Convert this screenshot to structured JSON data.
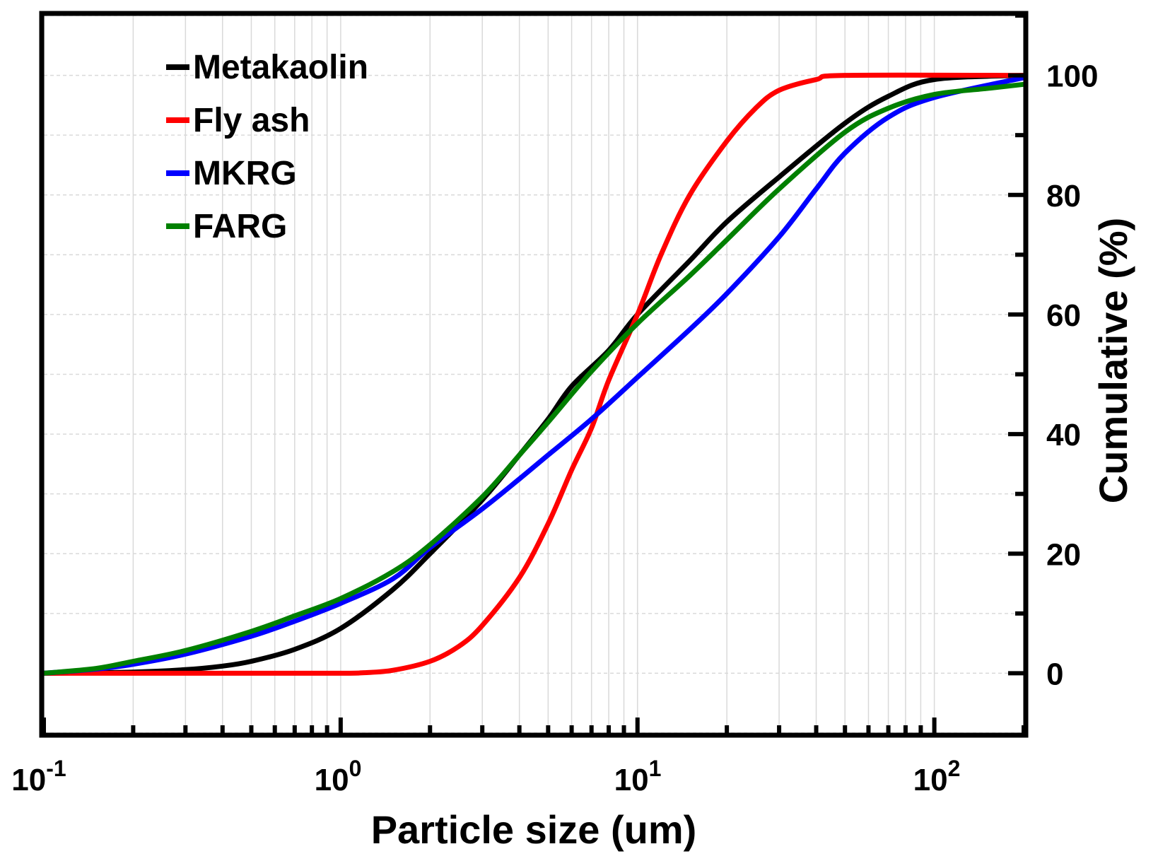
{
  "chart_data": {
    "type": "line",
    "title": "",
    "xlabel": "Particle size (um)",
    "ylabel": "Cumulative (%)",
    "xscale": "log",
    "xlim": [
      0.1,
      200
    ],
    "ylim": [
      -10,
      110
    ],
    "grid": true,
    "legend_position": "top-left",
    "x_tick_labels": [
      {
        "value": 0.1,
        "base": "10",
        "exp": "-1"
      },
      {
        "value": 1,
        "base": "10",
        "exp": "0"
      },
      {
        "value": 10,
        "base": "10",
        "exp": "1"
      },
      {
        "value": 100,
        "base": "10",
        "exp": "2"
      }
    ],
    "y_tick_labels": [
      "0",
      "20",
      "40",
      "60",
      "80",
      "100"
    ],
    "y_tick_values": [
      0,
      20,
      40,
      60,
      80,
      100
    ],
    "series": [
      {
        "name": "Metakaolin",
        "color": "#000000",
        "points": [
          [
            0.1,
            0
          ],
          [
            0.2,
            0.2
          ],
          [
            0.3,
            0.6
          ],
          [
            0.4,
            1.2
          ],
          [
            0.5,
            2
          ],
          [
            0.7,
            4
          ],
          [
            1,
            7.5
          ],
          [
            1.5,
            14
          ],
          [
            2,
            20
          ],
          [
            3,
            29
          ],
          [
            4,
            36.5
          ],
          [
            5,
            42.5
          ],
          [
            6,
            48
          ],
          [
            8,
            54
          ],
          [
            10,
            60
          ],
          [
            15,
            69
          ],
          [
            20,
            75.5
          ],
          [
            30,
            83
          ],
          [
            50,
            92
          ],
          [
            70,
            96.5
          ],
          [
            100,
            99.3
          ],
          [
            200,
            100
          ]
        ]
      },
      {
        "name": "Fly ash",
        "color": "#ff0000",
        "points": [
          [
            0.1,
            0
          ],
          [
            0.5,
            0
          ],
          [
            1,
            0
          ],
          [
            1.2,
            0.1
          ],
          [
            1.5,
            0.5
          ],
          [
            2,
            2
          ],
          [
            2.5,
            4.5
          ],
          [
            3,
            8
          ],
          [
            4,
            16
          ],
          [
            5,
            25
          ],
          [
            6,
            34
          ],
          [
            7,
            41
          ],
          [
            8,
            49
          ],
          [
            10,
            60
          ],
          [
            12,
            70
          ],
          [
            15,
            80
          ],
          [
            20,
            89
          ],
          [
            25,
            94.5
          ],
          [
            30,
            97.5
          ],
          [
            40,
            99.3
          ],
          [
            50,
            100
          ],
          [
            200,
            100
          ]
        ]
      },
      {
        "name": "MKRG",
        "color": "#0000ff",
        "points": [
          [
            0.1,
            0
          ],
          [
            0.15,
            0.7
          ],
          [
            0.2,
            1.5
          ],
          [
            0.3,
            3.2
          ],
          [
            0.5,
            6.2
          ],
          [
            0.7,
            8.7
          ],
          [
            1,
            11.7
          ],
          [
            1.5,
            15.8
          ],
          [
            2,
            21
          ],
          [
            3,
            27.5
          ],
          [
            4,
            32.5
          ],
          [
            5,
            36.5
          ],
          [
            7,
            42.5
          ],
          [
            10,
            49.5
          ],
          [
            15,
            57.5
          ],
          [
            20,
            63.5
          ],
          [
            30,
            73
          ],
          [
            40,
            81
          ],
          [
            50,
            87
          ],
          [
            70,
            93
          ],
          [
            100,
            96.3
          ],
          [
            200,
            99.6
          ]
        ]
      },
      {
        "name": "FARG",
        "color": "#008000",
        "points": [
          [
            0.1,
            0
          ],
          [
            0.15,
            0.8
          ],
          [
            0.2,
            2
          ],
          [
            0.3,
            3.8
          ],
          [
            0.5,
            7
          ],
          [
            0.7,
            9.6
          ],
          [
            1,
            12.5
          ],
          [
            1.5,
            17
          ],
          [
            2,
            21.5
          ],
          [
            3,
            29.5
          ],
          [
            4,
            36.5
          ],
          [
            5,
            42
          ],
          [
            7,
            50.5
          ],
          [
            10,
            58.5
          ],
          [
            15,
            66.5
          ],
          [
            20,
            72.5
          ],
          [
            30,
            81
          ],
          [
            50,
            90.5
          ],
          [
            70,
            94.5
          ],
          [
            100,
            96.8
          ],
          [
            150,
            97.8
          ],
          [
            200,
            98.5
          ]
        ]
      }
    ]
  }
}
